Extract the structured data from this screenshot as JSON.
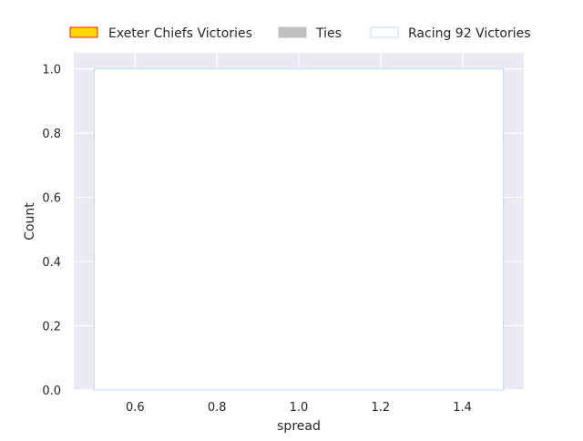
{
  "chart_data": {
    "type": "bar",
    "xlabel": "spread",
    "ylabel": "Count",
    "xlim": [
      0.45,
      1.55
    ],
    "ylim": [
      0,
      1.05
    ],
    "xticks": [
      0.6,
      0.8,
      1.0,
      1.2,
      1.4
    ],
    "xtick_labels": [
      "0.6",
      "0.8",
      "1.0",
      "1.2",
      "1.4"
    ],
    "yticks": [
      0.0,
      0.2,
      0.4,
      0.6,
      0.8,
      1.0
    ],
    "ytick_labels": [
      "0.0",
      "0.2",
      "0.4",
      "0.6",
      "0.8",
      "1.0"
    ],
    "grid": true,
    "legend_position": "top",
    "series": [
      {
        "name": "Exeter Chiefs Victories",
        "fill": "#ffd700",
        "stroke": "#e8261f",
        "bars": []
      },
      {
        "name": "Ties",
        "fill": "#c0c0c0",
        "stroke": "#c0c0c0",
        "bars": []
      },
      {
        "name": "Racing 92 Victories",
        "fill": "#ffffff",
        "stroke": "#c6dbef",
        "bars": [
          {
            "x0": 0.5,
            "x1": 1.5,
            "value": 1
          }
        ]
      }
    ],
    "background": "#eaeaf2"
  }
}
